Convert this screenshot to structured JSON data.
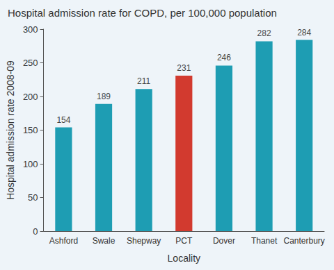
{
  "chart_data": {
    "type": "bar",
    "title": "Hospital admission rate for COPD, per 100,000 population",
    "x_label": "Locality",
    "y_label": "Hospital admission rate 2008-09",
    "categories": [
      "Ashford",
      "Swale",
      "Shepway",
      "PCT",
      "Dover",
      "Thanet",
      "Canterbury"
    ],
    "values": [
      154,
      189,
      211,
      231,
      246,
      282,
      284
    ],
    "colors": [
      "#1e9db3",
      "#1e9db3",
      "#1e9db3",
      "#d23a2f",
      "#1e9db3",
      "#1e9db3",
      "#1e9db3"
    ],
    "ylim": [
      0,
      300
    ],
    "yticks": [
      0,
      50,
      100,
      150,
      200,
      250,
      300
    ],
    "grid": false,
    "data_labels": true
  }
}
